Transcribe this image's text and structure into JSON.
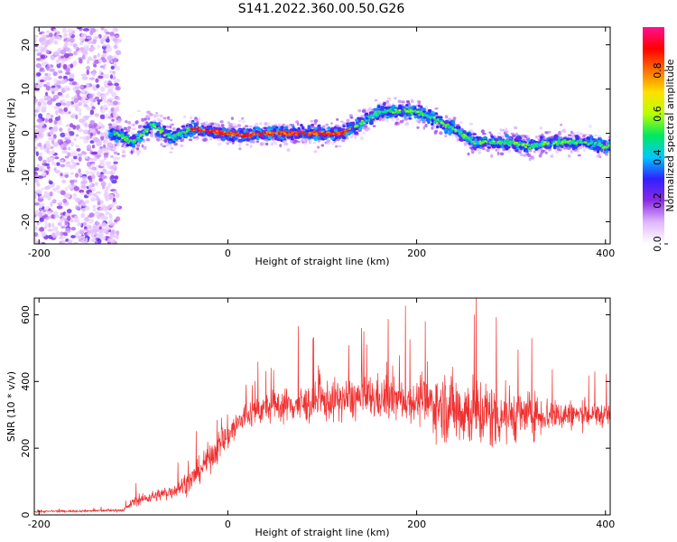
{
  "title": "S141.2022.360.00.50.G26",
  "chart_data": [
    {
      "type": "heatmap",
      "xlabel": "Height of straight line (km)",
      "ylabel": "Frequency (Hz)",
      "xlim": [
        -205,
        405
      ],
      "ylim": [
        -25,
        24
      ],
      "xticks": [
        -200,
        0,
        200,
        400
      ],
      "yticks": [
        -20,
        -10,
        0,
        10,
        20
      ],
      "grid": false,
      "colorbar": {
        "label": "Normalized spectral amplitude",
        "range": [
          0,
          1
        ],
        "ticks": [
          0.0,
          0.2,
          0.4,
          0.6,
          0.8
        ],
        "tick_labels": [
          "0.0",
          "0.2",
          "0.4",
          "0.6",
          "0.8"
        ],
        "colors": [
          "#ffffff",
          "#e0b8ff",
          "#8a2be2",
          "#3020ff",
          "#00c8ff",
          "#00e860",
          "#b8ff00",
          "#ffe000",
          "#ff7000",
          "#ff0000",
          "#ff1090"
        ]
      },
      "ridge": {
        "x": [
          -120,
          -100,
          -80,
          -60,
          -40,
          -20,
          0,
          20,
          40,
          60,
          80,
          100,
          120,
          140,
          160,
          180,
          200,
          220,
          240,
          260,
          280,
          300,
          320,
          340,
          360,
          380,
          400
        ],
        "frequency": [
          0,
          -2,
          2,
          -1,
          1,
          0.5,
          0,
          -0.5,
          0,
          0,
          0,
          0,
          0,
          2,
          5,
          5,
          5,
          3,
          1,
          -2,
          -2,
          -2,
          -3,
          -2,
          -2,
          -2,
          -3
        ]
      }
    },
    {
      "type": "line",
      "xlabel": "Height of straight line (km)",
      "ylabel": "SNR (10 * v/v)",
      "xlim": [
        -205,
        405
      ],
      "ylim": [
        0,
        650
      ],
      "xticks": [
        -200,
        0,
        200,
        400
      ],
      "yticks": [
        0,
        200,
        400,
        600
      ],
      "grid": false,
      "color": "#f03030",
      "envelope": {
        "x": [
          -205,
          -150,
          -110,
          -100,
          -80,
          -60,
          -40,
          -20,
          0,
          20,
          40,
          60,
          80,
          100,
          120,
          140,
          160,
          180,
          200,
          220,
          240,
          260,
          280,
          300,
          320,
          340,
          360,
          380,
          405
        ],
        "mean": [
          10,
          12,
          14,
          40,
          55,
          70,
          100,
          170,
          240,
          300,
          320,
          330,
          330,
          340,
          345,
          350,
          350,
          345,
          340,
          330,
          320,
          310,
          300,
          300,
          300,
          300,
          300,
          300,
          300
        ],
        "spread": [
          5,
          6,
          8,
          25,
          30,
          40,
          60,
          80,
          90,
          80,
          80,
          90,
          100,
          110,
          110,
          120,
          120,
          110,
          110,
          160,
          200,
          200,
          190,
          150,
          120,
          100,
          80,
          70,
          60
        ]
      }
    }
  ]
}
